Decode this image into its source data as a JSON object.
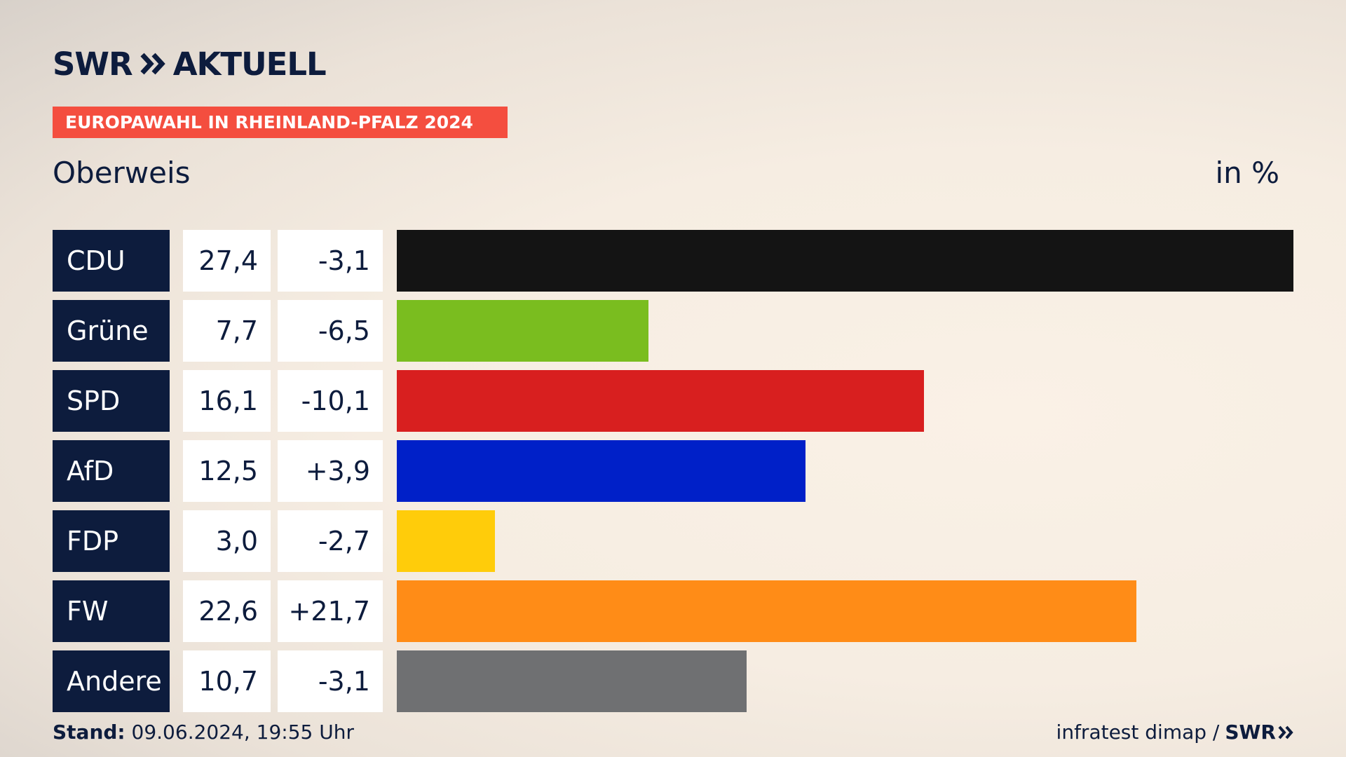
{
  "logo": {
    "brand": "SWR",
    "name": "AKTUELL"
  },
  "tag": "EUROPAWAHL IN RHEINLAND-PFALZ 2024",
  "subtitle": "Oberweis",
  "unit": "in %",
  "colors": {
    "navy": "#0d1c3d",
    "tag": "#f44e3f"
  },
  "chart_data": {
    "type": "bar",
    "orientation": "horizontal",
    "title": "Oberweis",
    "unit": "in %",
    "categories": [
      "CDU",
      "Grüne",
      "SPD",
      "AfD",
      "FDP",
      "FW",
      "Andere"
    ],
    "values": [
      27.4,
      7.7,
      16.1,
      12.5,
      3.0,
      22.6,
      10.7
    ],
    "value_labels": [
      "27,4",
      "7,7",
      "16,1",
      "12,5",
      "3,0",
      "22,6",
      "10,7"
    ],
    "change_labels": [
      "-3,1",
      "-6,5",
      "-10,1",
      "+3,9",
      "-2,7",
      "+21,7",
      "-3,1"
    ],
    "changes": [
      -3.1,
      -6.5,
      -10.1,
      3.9,
      -2.7,
      21.7,
      -3.1
    ],
    "colors": [
      "#141414",
      "#7abd1f",
      "#d81f1f",
      "#0020c8",
      "#ffcc0a",
      "#ff8c17",
      "#6f7072"
    ],
    "xlim": [
      0,
      27.4
    ],
    "grid": false,
    "legend": "none"
  },
  "footer": {
    "stand_label": "Stand:",
    "stand_value": "09.06.2024, 19:55 Uhr",
    "source": "infratest dimap /",
    "source_brand": "SWR"
  }
}
